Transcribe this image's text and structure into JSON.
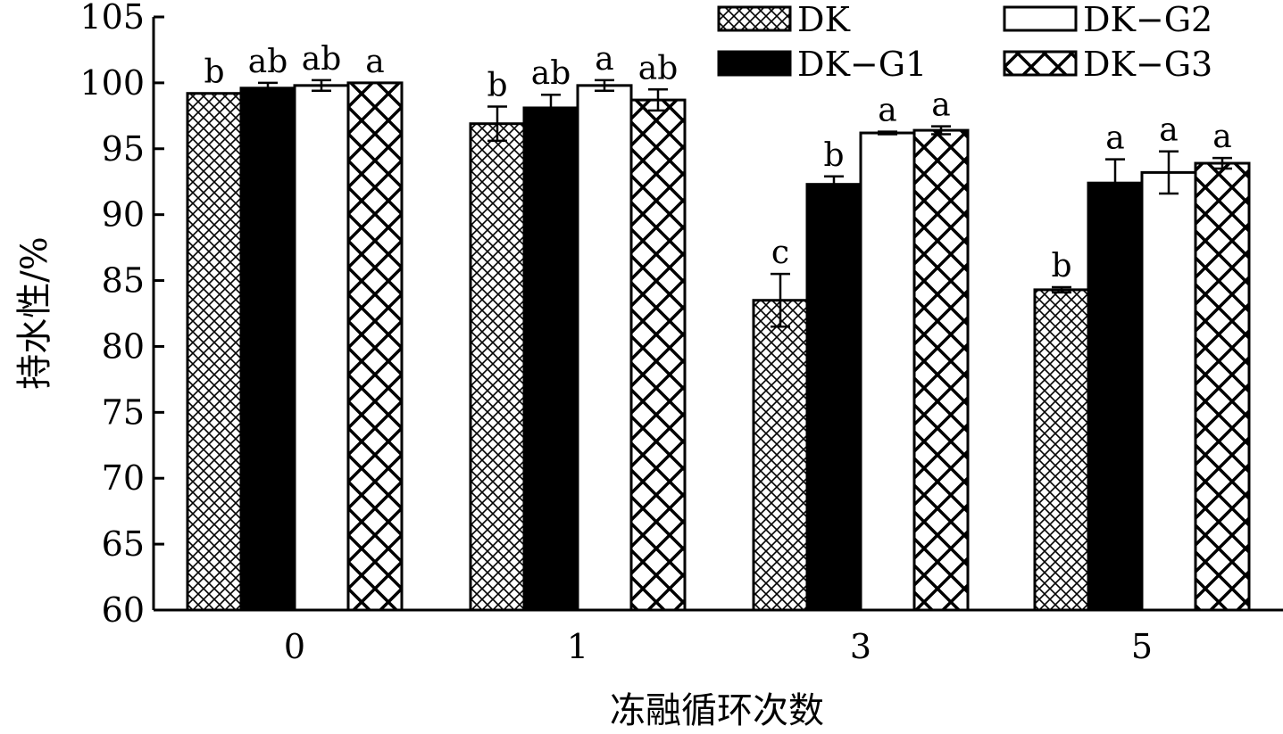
{
  "chart_data": {
    "type": "bar",
    "xlabel": "冻融循环次数",
    "ylabel": "持水性/%",
    "ylim": [
      60,
      105
    ],
    "yticks": [
      60,
      65,
      70,
      75,
      80,
      85,
      90,
      95,
      100,
      105
    ],
    "categories": [
      "0",
      "1",
      "3",
      "5"
    ],
    "grid": false,
    "legend_position": "top-right",
    "series": [
      {
        "name": "DK",
        "pattern": "fine-crosshatch",
        "values": [
          99.2,
          96.9,
          83.5,
          84.3
        ],
        "errors": [
          0.0,
          1.3,
          2.0,
          0.2
        ],
        "labels": [
          "b",
          "b",
          "c",
          "b"
        ]
      },
      {
        "name": "DK−G1",
        "pattern": "solid-black",
        "values": [
          99.6,
          98.1,
          92.3,
          92.4
        ],
        "errors": [
          0.4,
          1.0,
          0.6,
          1.8
        ],
        "labels": [
          "ab",
          "ab",
          "b",
          "a"
        ]
      },
      {
        "name": "DK−G2",
        "pattern": "white",
        "values": [
          99.8,
          99.8,
          96.2,
          93.2
        ],
        "errors": [
          0.4,
          0.4,
          0.1,
          1.6
        ],
        "labels": [
          "ab",
          "a",
          "a",
          "a"
        ]
      },
      {
        "name": "DK−G3",
        "pattern": "coarse-crosshatch",
        "values": [
          100.0,
          98.7,
          96.4,
          93.9
        ],
        "errors": [
          0.0,
          0.8,
          0.3,
          0.4
        ],
        "labels": [
          "a",
          "ab",
          "a",
          "a"
        ]
      }
    ]
  }
}
